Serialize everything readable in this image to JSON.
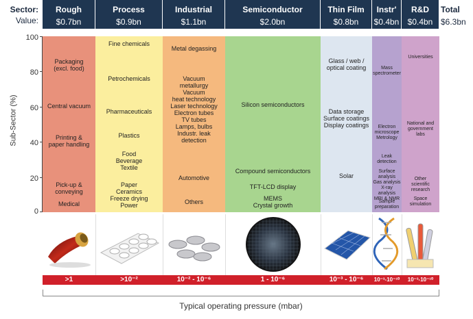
{
  "header": {
    "sector_label": "Sector:",
    "value_label": "Value:"
  },
  "sectors": [
    {
      "name": "Rough",
      "value": "$0.7bn",
      "pressure": ">1",
      "color": "#e8917b"
    },
    {
      "name": "Process",
      "value": "$0.9bn",
      "pressure": ">10⁻²",
      "color": "#fbee9e"
    },
    {
      "name": "Industrial",
      "value": "$1.1bn",
      "pressure": "10⁻² - 10⁻⁶",
      "color": "#f5b97e"
    },
    {
      "name": "Semiconductor",
      "value": "$2.0bn",
      "pressure": "1 - 10⁻⁶",
      "color": "#a8d58f"
    },
    {
      "name": "Thin Film",
      "value": "$0.8bn",
      "pressure": "10⁻³ - 10⁻⁶",
      "color": "#dde6f0"
    },
    {
      "name": "Instr'",
      "value": "$0.4bn",
      "pressure": "10⁻³-10⁻¹⁰",
      "color": "#b6a2cf"
    },
    {
      "name": "R&D",
      "value": "$0.4bn",
      "pressure": "10⁻³-10⁻¹⁰",
      "color": "#cfa3cb"
    }
  ],
  "total": {
    "name": "Total",
    "value": "$6.3bn"
  },
  "chart_data": {
    "type": "table",
    "ylabel": "Sub-Sector (%)",
    "xlabel": "Typical operating pressure (mbar)",
    "ylim": [
      0,
      100
    ],
    "yticks": [
      "0",
      "20",
      "40",
      "60",
      "80",
      "100"
    ],
    "subsectors": [
      [
        "Packaging\n(excl. food)",
        "Central vacuum",
        "Printing &\npaper handling",
        "Pick-up &\nconveying",
        "Medical"
      ],
      [
        "Fine chemicals",
        "Petrochemicals",
        "Pharmaceuticals",
        "Plastics",
        "Food\nBeverage\nTextile",
        "Paper\nCeramics\nFreeze drying\nPower"
      ],
      [
        "Metal degassing",
        "Vacuum\nmetallurgy\nVacuum\nheat technology\nLaser technology\nElectron tubes\nTV tubes\nLamps, bulbs\nIndustr. leak\ndetection",
        "Automotive",
        "Others"
      ],
      [
        "Silicon semiconductors",
        "Compound semiconductors",
        "TFT-LCD display",
        "MEMS\nCrystal growth"
      ],
      [
        "Glass / web /\noptical coating",
        "Data storage\nSurface coatings\nDisplay coatings",
        "Solar"
      ],
      [
        "Mass\nspectrometer",
        "Electron\nmicroscope\nMetrology",
        "Leak\ndetection",
        "Surface\nanalysis\nGas analysis\nX-ray analysis\nMRI & NMR",
        "Sample\npreparation"
      ],
      [
        "Universities",
        "National and\ngovernment\nlabs",
        "Other\nscientific\nresearch",
        "Space\nsimulation"
      ]
    ]
  }
}
